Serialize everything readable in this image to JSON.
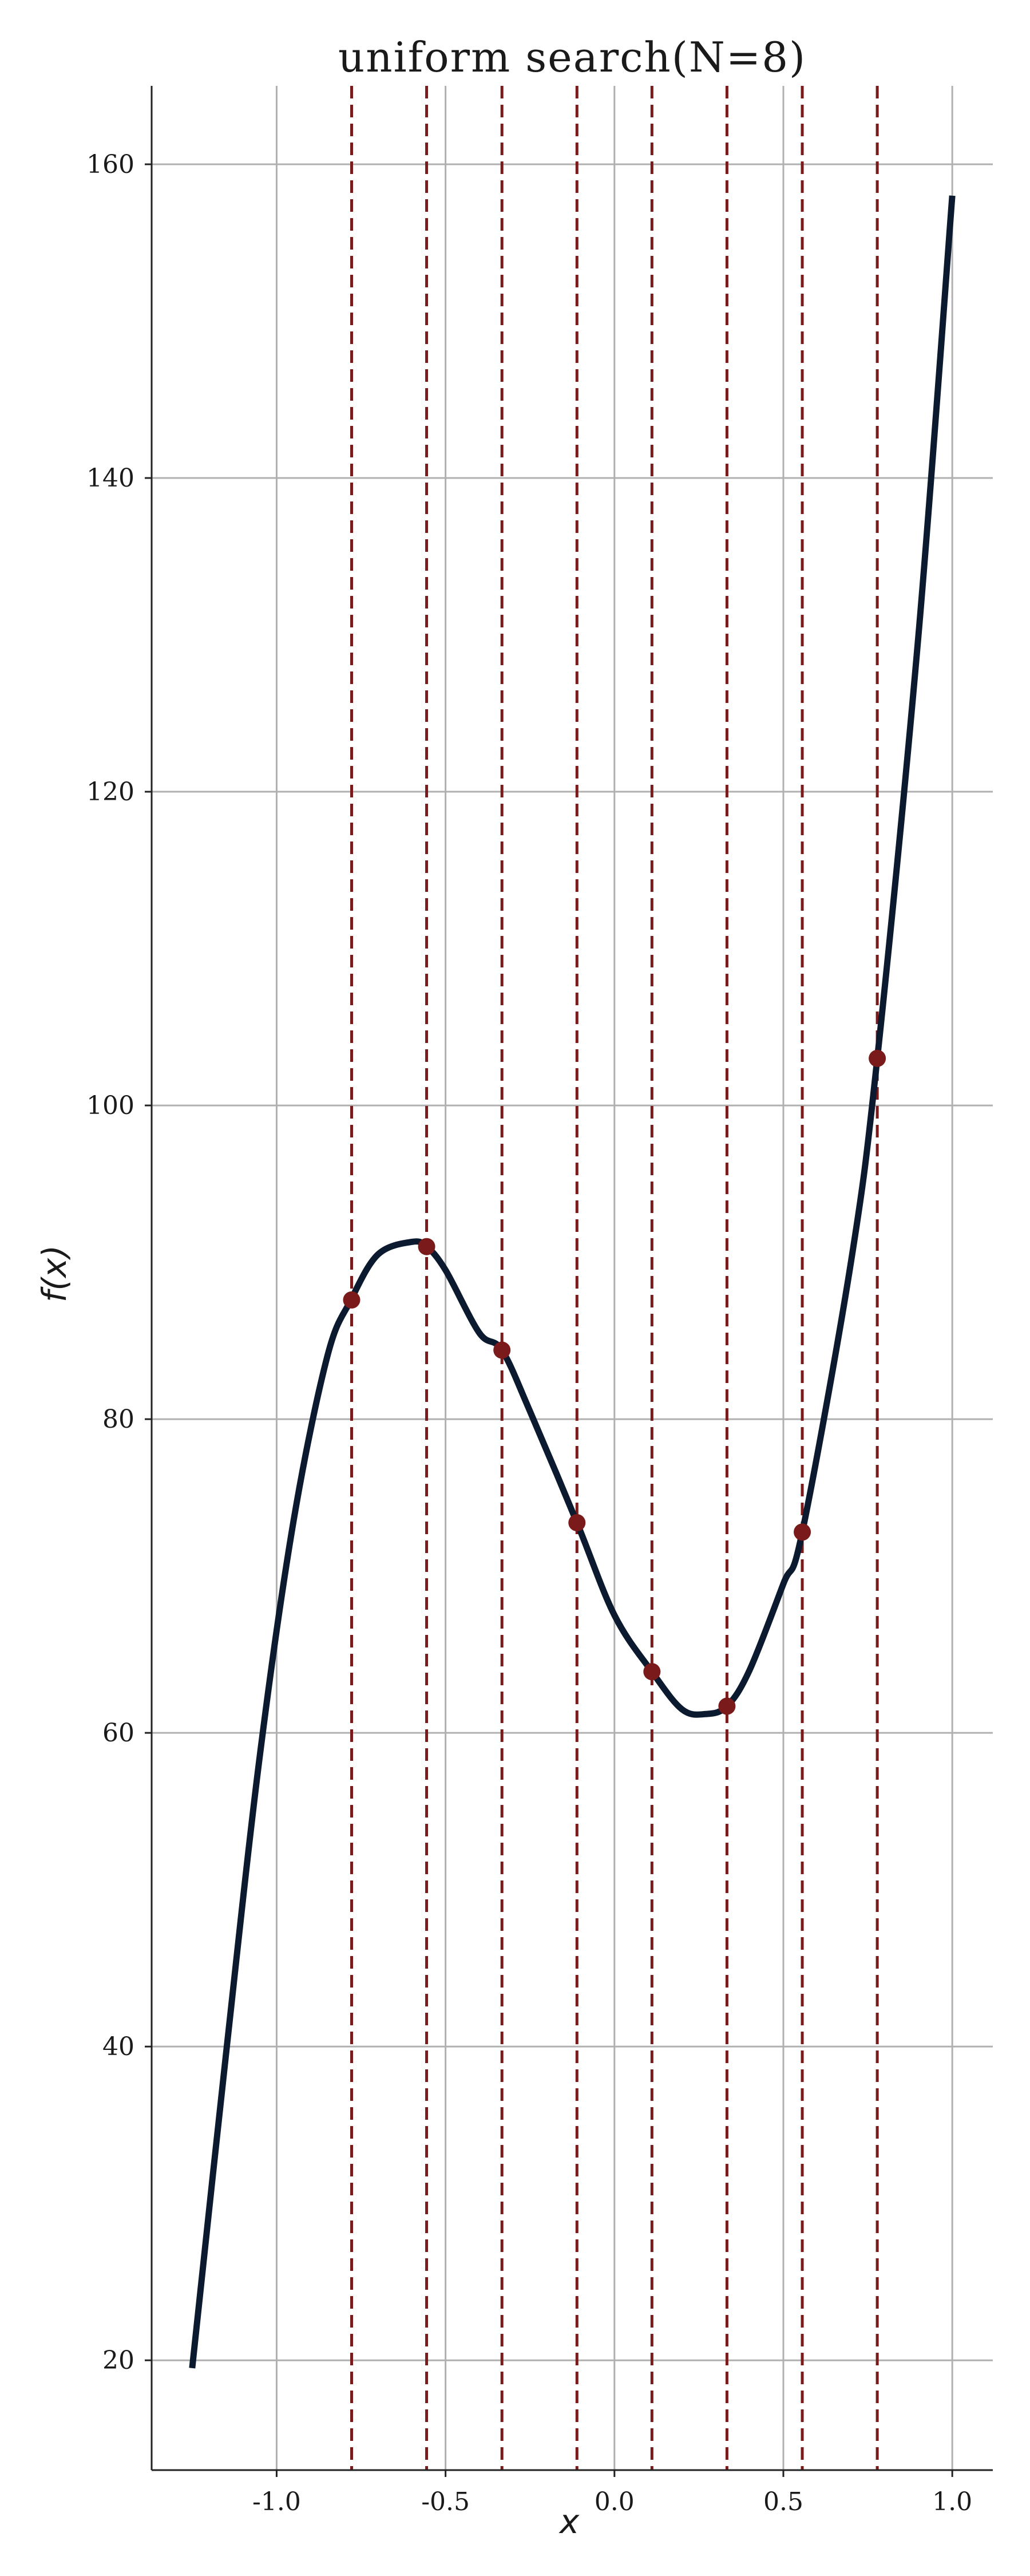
{
  "colors": {
    "curve": "#0b1a2e",
    "marker": "#7a1a1a",
    "search_line": "#7a1a1a",
    "grid": "#b0b0b0",
    "spine": "#222222"
  },
  "chart_data": {
    "type": "line",
    "title": "uniform search(N=8)",
    "xlabel": "x",
    "ylabel": "f(x)",
    "xlim": [
      -1.37,
      1.12
    ],
    "ylim": [
      13,
      165
    ],
    "xticks": [
      -1.0,
      -0.5,
      0.0,
      0.5,
      1.0
    ],
    "xtick_labels": [
      "-1.0",
      "-0.5",
      "0.0",
      "0.5",
      "1.0"
    ],
    "yticks": [
      20,
      40,
      60,
      80,
      100,
      120,
      140,
      160
    ],
    "ytick_labels": [
      "20",
      "40",
      "60",
      "80",
      "100",
      "120",
      "140",
      "160"
    ],
    "grid": true,
    "curve": {
      "x": [
        -1.25,
        -1.15,
        -1.05,
        -0.95,
        -0.85,
        -0.78,
        -0.7,
        -0.6,
        -0.556,
        -0.5,
        -0.4,
        -0.333,
        -0.25,
        -0.111,
        0.0,
        0.111,
        0.2,
        0.27,
        0.333,
        0.4,
        0.5,
        0.556,
        0.7,
        0.778,
        0.9,
        1.0
      ],
      "y": [
        19.5,
        39.5,
        58.5,
        73.5,
        84.0,
        87.6,
        90.5,
        91.3,
        91.0,
        89.5,
        85.5,
        84.4,
        80.5,
        73.4,
        67.5,
        63.9,
        61.5,
        61.2,
        61.7,
        64.0,
        69.5,
        72.8,
        90.0,
        103.0,
        130.0,
        158.0
      ]
    },
    "search_points": {
      "x": [
        -0.778,
        -0.556,
        -0.333,
        -0.111,
        0.111,
        0.333,
        0.556,
        0.778
      ],
      "y": [
        87.6,
        91.0,
        84.4,
        73.4,
        63.9,
        61.7,
        72.8,
        103.0
      ]
    }
  }
}
